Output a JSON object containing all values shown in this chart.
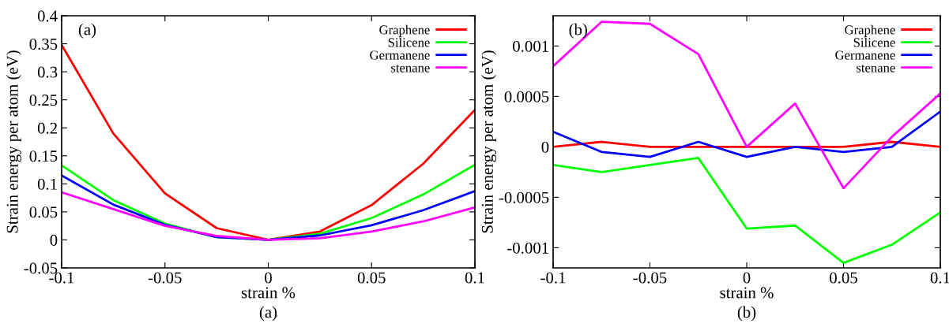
{
  "chart_data": [
    {
      "type": "line",
      "xlabel": "strain %",
      "ylabel": "Strain energy per atom (eV)",
      "x": [
        -0.1,
        -0.075,
        -0.05,
        -0.025,
        0,
        0.025,
        0.05,
        0.075,
        0.1
      ],
      "series": [
        {
          "name": "Graphene",
          "color": "#ff0000",
          "values": [
            0.348,
            0.19,
            0.083,
            0.021,
            0,
            0.015,
            0.062,
            0.136,
            0.232
          ]
        },
        {
          "name": "Silicene",
          "color": "#00ff00",
          "values": [
            0.133,
            0.071,
            0.029,
            0.005,
            0,
            0.011,
            0.039,
            0.081,
            0.134
          ]
        },
        {
          "name": "Germanene",
          "color": "#0000ff",
          "values": [
            0.115,
            0.063,
            0.027,
            0.005,
            0,
            0.008,
            0.026,
            0.053,
            0.087
          ]
        },
        {
          "name": "stenane",
          "color": "#ff00ff",
          "values": [
            0.085,
            0.055,
            0.025,
            0.007,
            0,
            0.003,
            0.015,
            0.033,
            0.058
          ]
        }
      ],
      "xlim": [
        -0.1,
        0.1
      ],
      "xticks": [
        -0.1,
        -0.05,
        0,
        0.05,
        0.1
      ],
      "ylim": [
        -0.05,
        0.4
      ],
      "yticks": [
        -0.05,
        0,
        0.05,
        0.1,
        0.15,
        0.2,
        0.25,
        0.3,
        0.35,
        0.4
      ],
      "legend": "top right",
      "grid": false,
      "marker": "none",
      "line_style": "solid",
      "annotations": [
        "(a)",
        "(a)"
      ]
    },
    {
      "type": "line",
      "xlabel": "strain %",
      "ylabel": "Strain energy per atom (eV)",
      "x": [
        -0.1,
        -0.075,
        -0.05,
        -0.025,
        0,
        0.025,
        0.05,
        0.075,
        0.1
      ],
      "series": [
        {
          "name": "Graphene",
          "color": "#ff0000",
          "values": [
            0,
            5e-05,
            0,
            0,
            0,
            0,
            0,
            5e-05,
            0
          ]
        },
        {
          "name": "Silicene",
          "color": "#00ff00",
          "values": [
            -0.00018,
            -0.00025,
            -0.00018,
            -0.00011,
            -0.00081,
            -0.00078,
            -0.00115,
            -0.00097,
            -0.00065
          ]
        },
        {
          "name": "Germanene",
          "color": "#0000ff",
          "values": [
            0.00015,
            -5e-05,
            -0.0001,
            5e-05,
            -0.0001,
            0,
            -5e-05,
            0,
            0.00035
          ]
        },
        {
          "name": "stenane",
          "color": "#ff00ff",
          "values": [
            0.0008,
            0.00124,
            0.00122,
            0.00092,
            0,
            0.00043,
            -0.00041,
            0.0001,
            0.00053
          ]
        }
      ],
      "xlim": [
        -0.1,
        0.1
      ],
      "xticks": [
        -0.1,
        -0.05,
        0,
        0.05,
        0.1
      ],
      "ylim": [
        -0.0012,
        0.0013
      ],
      "yticks": [
        -0.001,
        -0.0005,
        0,
        0.0005,
        0.001
      ],
      "legend": "top right",
      "grid": false,
      "marker": "none",
      "line_style": "solid",
      "annotations": [
        "(b)",
        "(b)"
      ]
    }
  ]
}
